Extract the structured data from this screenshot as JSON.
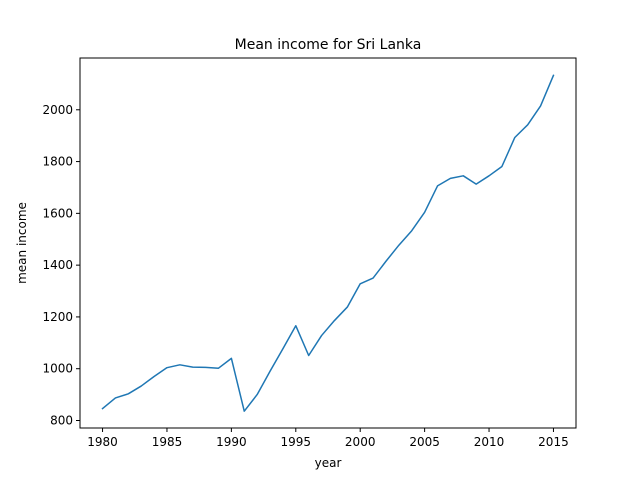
{
  "chart_data": {
    "type": "line",
    "title": "Mean income for Sri Lanka",
    "xlabel": "year",
    "ylabel": "mean income",
    "xlim": [
      1978.25,
      1976.75
    ],
    "ylim": [
      771,
      2200
    ],
    "xticks": [
      1980,
      1985,
      1990,
      1995,
      2000,
      2005,
      2010,
      2015
    ],
    "yticks": [
      800,
      1000,
      1200,
      1400,
      1600,
      1800,
      2000
    ],
    "grid": false,
    "line_color": "#1f77b4",
    "series": [
      {
        "x": [
          1980,
          1981,
          1982,
          1983,
          1984,
          1985,
          1986,
          1987,
          1988,
          1989,
          1990,
          1991,
          1992,
          1993,
          1994,
          1995,
          1996,
          1997,
          1998,
          1999,
          2000,
          2001,
          2002,
          2003,
          2004,
          2005,
          2006,
          2007,
          2008,
          2009,
          2010,
          2011,
          2012,
          2013,
          2014,
          2015
        ],
        "values": [
          846,
          887,
          903,
          933,
          970,
          1004,
          1015,
          1006,
          1005,
          1002,
          1040,
          836,
          900,
          990,
          1077,
          1166,
          1051,
          1128,
          1186,
          1238,
          1328,
          1350,
          1415,
          1477,
          1533,
          1604,
          1706,
          1735,
          1745,
          1713,
          1745,
          1781,
          1893,
          1942,
          2015,
          2133
        ]
      }
    ]
  }
}
